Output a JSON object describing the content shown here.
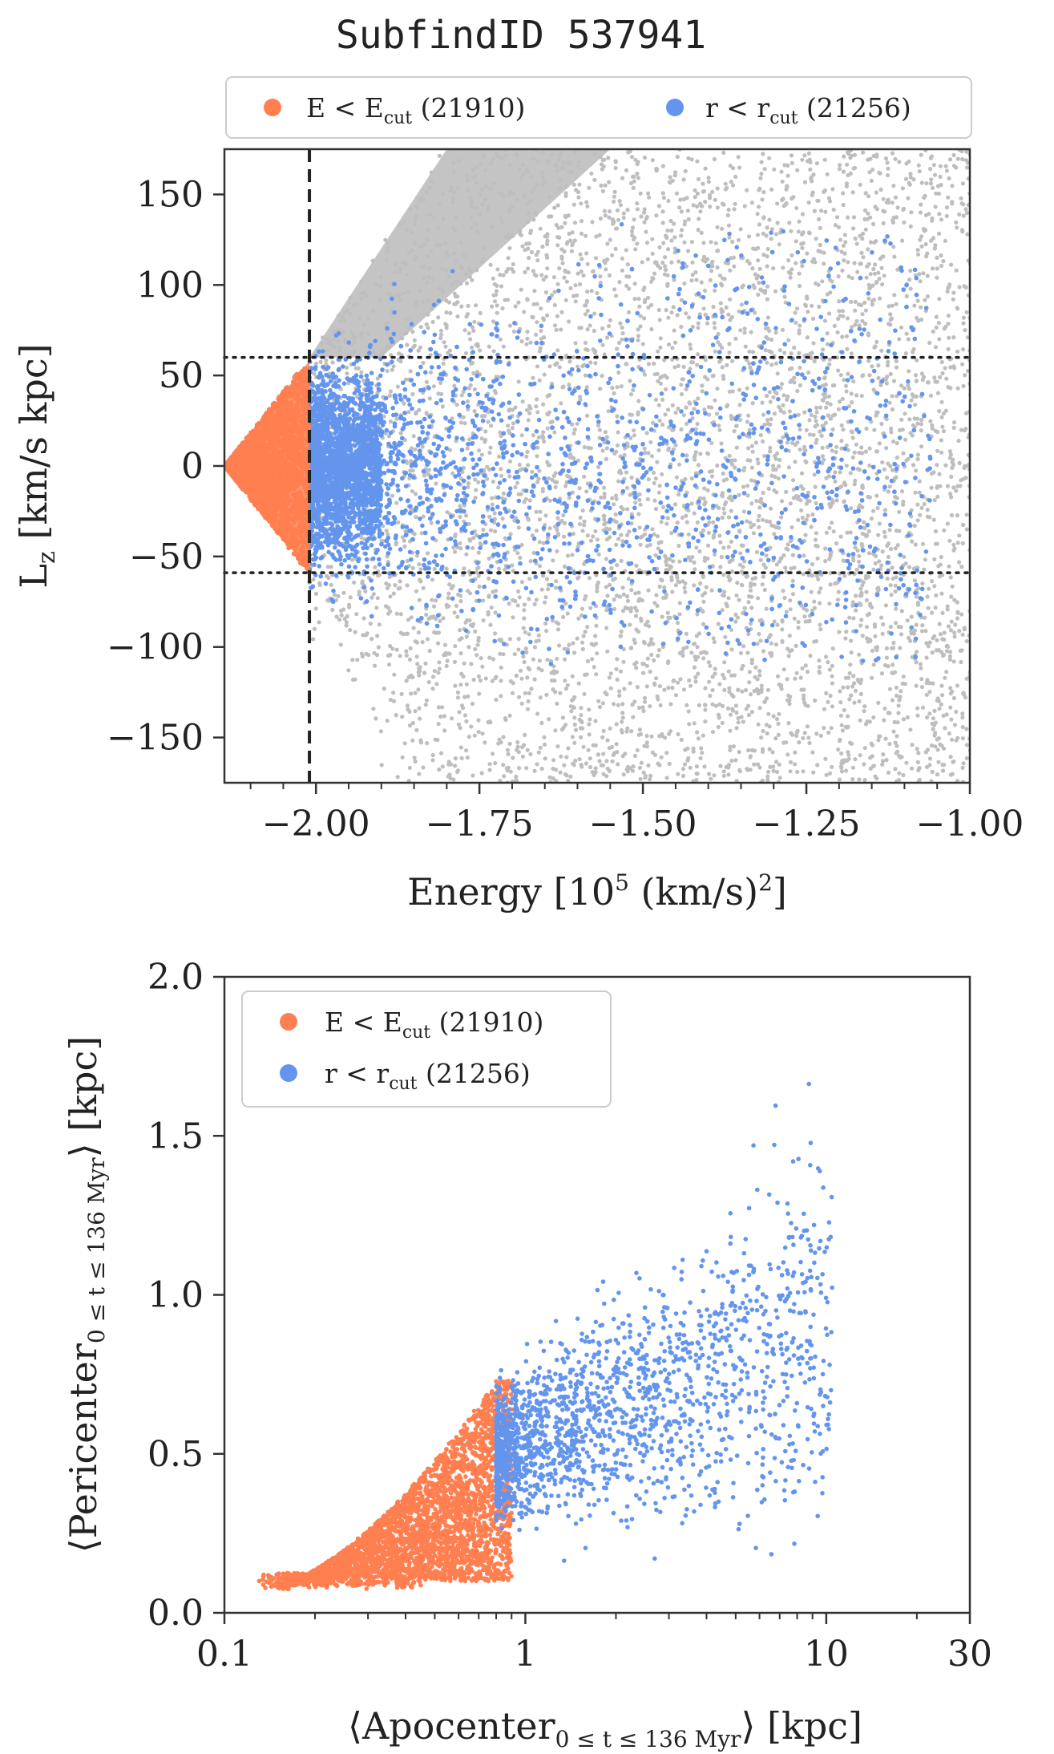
{
  "figure": {
    "title": "SubfindID 537941"
  },
  "colors": {
    "energy_cut": "#FF7F50",
    "radius_cut": "#6495ED",
    "all": "#BEBEBE",
    "frame": "#333333"
  },
  "chart_data": [
    {
      "type": "scatter",
      "title": "SubfindID 537941",
      "xlabel": "Energy [10^5 (km/s)^2]",
      "xlabel_parts": {
        "main": "Energy [10",
        "sup1": "5",
        "mid": " (km/s)",
        "sup2": "2",
        "end": "]"
      },
      "ylabel": "L_z [km/s kpc]",
      "ylabel_parts": {
        "main": "L",
        "sub": "z",
        "end": " [km/s kpc]"
      },
      "xlim": [
        -2.14,
        -1.0
      ],
      "ylim": [
        -175,
        175
      ],
      "xticks": [
        -2.0,
        -1.75,
        -1.5,
        -1.25,
        -1.0
      ],
      "xtick_labels": [
        "−2.00",
        "−1.75",
        "−1.50",
        "−1.25",
        "−1.00"
      ],
      "yticks": [
        150,
        100,
        50,
        0,
        -50,
        -100,
        -150
      ],
      "ytick_labels": [
        "150",
        "100",
        "50",
        "0",
        "−50",
        "−100",
        "−150"
      ],
      "reference_lines": [
        {
          "orientation": "vertical",
          "value": -2.01,
          "style": "dashed"
        },
        {
          "orientation": "horizontal",
          "value": 60,
          "style": "dotted"
        },
        {
          "orientation": "horizontal",
          "value": -59,
          "style": "dotted"
        }
      ],
      "legend": {
        "placement": "top, outside, 2 columns"
      },
      "series": [
        {
          "name": "all particles",
          "color": "#BEBEBE",
          "region": "E > -2.01, |Lz| up to ~175; wedge |Lz| < 60 + 560*(E+2.01)"
        },
        {
          "name": "E < E_cut (21910)",
          "color": "#FF7F50",
          "x_range": [
            -2.14,
            -2.01
          ],
          "y_range": [
            -60,
            60
          ]
        },
        {
          "name": "r < r_cut (21256)",
          "color": "#6495ED",
          "x_range": [
            -2.01,
            -1.02
          ],
          "y_range": [
            -110,
            135
          ]
        }
      ]
    },
    {
      "type": "scatter",
      "xlabel": "⟨Apocenter_{0 ≤ t ≤ 136 Myr}⟩ [kpc]",
      "xlabel_parts": {
        "open": "⟨Apocenter",
        "sub": "0 ≤ t ≤ 136 Myr",
        "close": "⟩ [kpc]"
      },
      "ylabel": "⟨Pericenter_{0 ≤ t ≤ 136 Myr}⟩ [kpc]",
      "ylabel_parts": {
        "open": "⟨Pericenter",
        "sub": "0 ≤ t ≤ 136 Myr",
        "close": "⟩ [kpc]"
      },
      "x_scale": "log",
      "xlim": [
        0.1,
        30
      ],
      "ylim": [
        0.0,
        2.0
      ],
      "xticks": [
        0.1,
        1,
        10,
        30
      ],
      "xtick_labels": [
        "0.1",
        "1",
        "10",
        "30"
      ],
      "yticks": [
        0.0,
        0.5,
        1.0,
        1.5,
        2.0
      ],
      "ytick_labels": [
        "0.0",
        "0.5",
        "1.0",
        "1.5",
        "2.0"
      ],
      "legend": {
        "placement": "top-left"
      },
      "series": [
        {
          "name": "E < E_cut (21910)",
          "color": "#FF7F50",
          "x_range": [
            0.13,
            0.9
          ],
          "y_range": [
            0.07,
            0.73
          ]
        },
        {
          "name": "r < r_cut (21256)",
          "color": "#6495ED",
          "x_range": [
            0.8,
            10.5
          ],
          "y_range": [
            0.16,
            1.85
          ]
        }
      ]
    }
  ],
  "legend_entries": [
    {
      "main": "E < E",
      "sub": "cut",
      "rest": " (21910)"
    },
    {
      "main": "r < r",
      "sub": "cut",
      "rest": " (21256)"
    }
  ]
}
